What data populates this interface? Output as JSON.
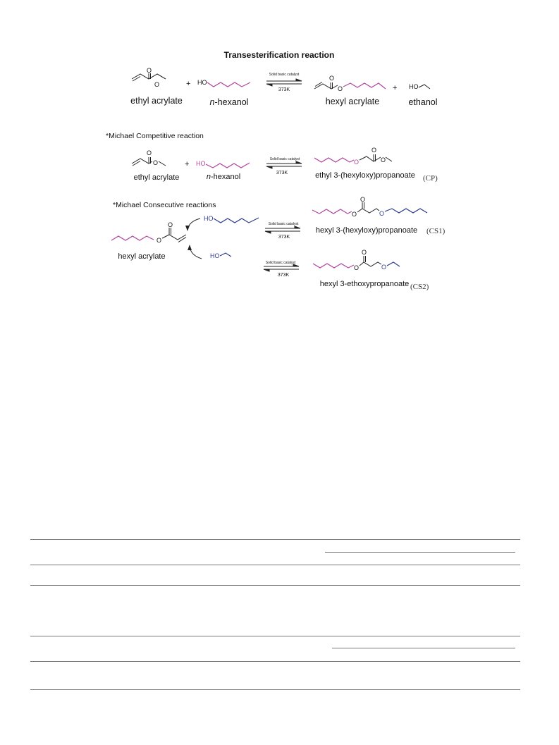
{
  "title": "Transesterification reaction",
  "colors": {
    "hexyl": "#b0449e",
    "ethoxy": "#2d3b8f",
    "bond": "#222222"
  },
  "atoms": {
    "O": "O",
    "HO": "HO"
  },
  "conditions": {
    "catalyst": "Solid basic catalyst",
    "temperature": "373K"
  },
  "plus": "+",
  "reaction1": {
    "reactant1": "ethyl acrylate",
    "reactant2_prefix": "n",
    "reactant2_suffix": "-hexanol",
    "product1": "hexyl acrylate",
    "product2": "ethanol"
  },
  "reaction2": {
    "heading": "*Michael Competitive reaction",
    "reactant1": "ethyl acrylate",
    "reactant2_prefix": "n",
    "reactant2_suffix": "-hexanol",
    "product": "ethyl 3-(hexyloxy)propanoate",
    "tag": "(CP)"
  },
  "reaction3": {
    "heading": "*Michael Consecutive reactions",
    "reactant": "hexyl acrylate",
    "product1": "hexyl 3-(hexyloxy)propanoate",
    "tag1": "(CS1)",
    "product2": "hexyl 3-ethoxypropanoate",
    "tag2": "(CS2)"
  }
}
